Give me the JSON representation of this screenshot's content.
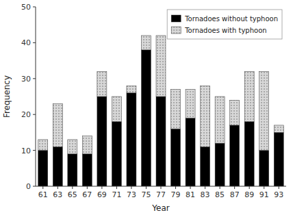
{
  "chart_data": {
    "type": "bar",
    "stacked": true,
    "xlabel": "Year",
    "ylabel": "Frequency",
    "categories": [
      "61",
      "63",
      "65",
      "67",
      "69",
      "71",
      "73",
      "75",
      "77",
      "79",
      "81",
      "83",
      "85",
      "87",
      "89",
      "91",
      "93"
    ],
    "series": [
      {
        "name": "Tornadoes without typhoon",
        "color": "#000000",
        "values": [
          10,
          11,
          9,
          9,
          25,
          18,
          26,
          38,
          25,
          16,
          19,
          11,
          12,
          17,
          18,
          10,
          15
        ]
      },
      {
        "name": "Tornadoes with typhoon",
        "color": "#d8d8d8",
        "values": [
          3,
          12,
          4,
          5,
          7,
          7,
          2,
          4,
          17,
          11,
          8,
          17,
          13,
          7,
          14,
          22,
          2
        ]
      }
    ],
    "ylim": [
      0,
      50
    ],
    "yticks": [
      0,
      10,
      20,
      30,
      40,
      50
    ],
    "grid": false,
    "legend": "upper right"
  }
}
